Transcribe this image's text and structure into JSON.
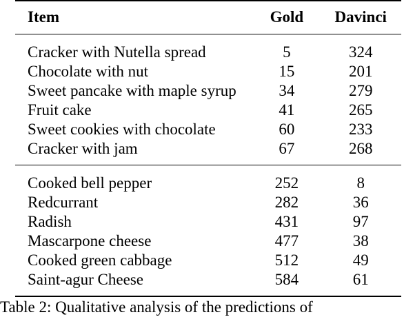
{
  "table": {
    "headers": {
      "item": "Item",
      "gold": "Gold",
      "davinci": "Davinci"
    },
    "group1": [
      {
        "item": "Cracker with Nutella spread",
        "gold": "5",
        "davinci": "324"
      },
      {
        "item": "Chocolate with nut",
        "gold": "15",
        "davinci": "201"
      },
      {
        "item": "Sweet pancake with maple syrup",
        "gold": "34",
        "davinci": "279"
      },
      {
        "item": "Fruit cake",
        "gold": "41",
        "davinci": "265"
      },
      {
        "item": "Sweet cookies with chocolate",
        "gold": "60",
        "davinci": "233"
      },
      {
        "item": "Cracker with jam",
        "gold": "67",
        "davinci": "268"
      }
    ],
    "group2": [
      {
        "item": "Cooked bell pepper",
        "gold": "252",
        "davinci": "8"
      },
      {
        "item": "Redcurrant",
        "gold": "282",
        "davinci": "36"
      },
      {
        "item": "Radish",
        "gold": "431",
        "davinci": "97"
      },
      {
        "item": "Mascarpone cheese",
        "gold": "477",
        "davinci": "38"
      },
      {
        "item": "Cooked green cabbage",
        "gold": "512",
        "davinci": "49"
      },
      {
        "item": "Saint-agur Cheese",
        "gold": "584",
        "davinci": "61"
      }
    ]
  },
  "caption": "Table 2: Qualitative analysis of the predictions of"
}
